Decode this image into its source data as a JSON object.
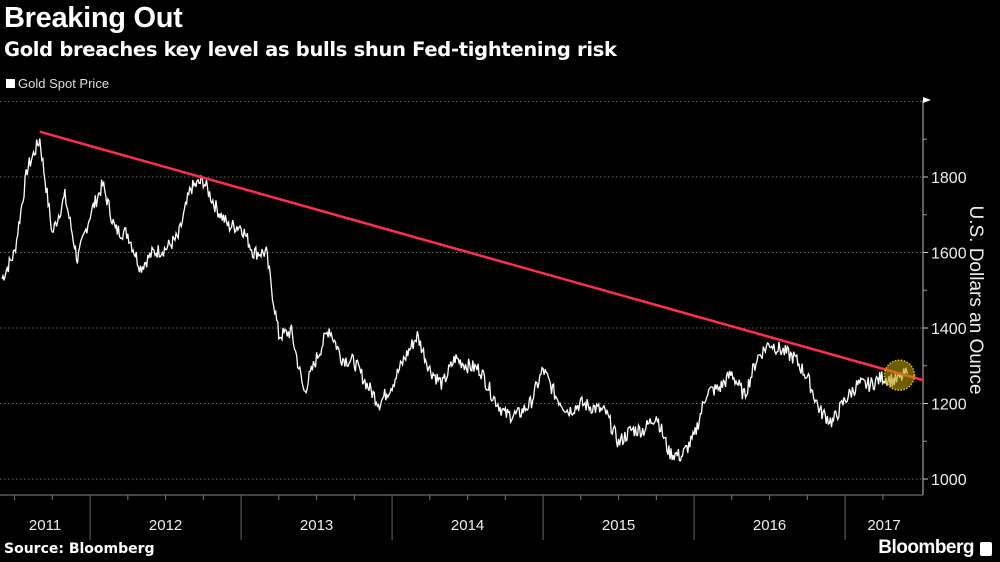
{
  "title": "Breaking Out",
  "subtitle": "Gold breaches key level as bulls shun Fed-tightening risk",
  "source": "Source: Bloomberg",
  "brand": "Bloomberg",
  "chart_data": {
    "type": "line",
    "legend": [
      "Gold Spot Price"
    ],
    "ylabel": "U.S. Dollars an Ounce",
    "ylim": [
      1000,
      2000
    ],
    "yticks": [
      1000,
      1200,
      1400,
      1600,
      1800
    ],
    "xlim": [
      "2011-06",
      "2017-06"
    ],
    "xtick_labels": [
      "2011",
      "2012",
      "2013",
      "2014",
      "2015",
      "2016",
      "2017"
    ],
    "grid": true,
    "colors": {
      "series": "#ffffff",
      "trendline": "#ff2d4f",
      "highlight": "#b89a00"
    },
    "series": [
      {
        "name": "Gold Spot Price",
        "x": [
          "2011-06",
          "2011-07",
          "2011-08",
          "2011-09",
          "2011-10",
          "2011-11",
          "2011-12",
          "2012-01",
          "2012-02",
          "2012-03",
          "2012-04",
          "2012-05",
          "2012-06",
          "2012-07",
          "2012-08",
          "2012-09",
          "2012-10",
          "2012-11",
          "2012-12",
          "2013-01",
          "2013-02",
          "2013-03",
          "2013-04",
          "2013-05",
          "2013-06",
          "2013-07",
          "2013-08",
          "2013-09",
          "2013-10",
          "2013-11",
          "2013-12",
          "2014-01",
          "2014-02",
          "2014-03",
          "2014-04",
          "2014-05",
          "2014-06",
          "2014-07",
          "2014-08",
          "2014-09",
          "2014-10",
          "2014-11",
          "2014-12",
          "2015-01",
          "2015-02",
          "2015-03",
          "2015-04",
          "2015-05",
          "2015-06",
          "2015-07",
          "2015-08",
          "2015-09",
          "2015-10",
          "2015-11",
          "2015-12",
          "2016-01",
          "2016-02",
          "2016-03",
          "2016-04",
          "2016-05",
          "2016-06",
          "2016-07",
          "2016-08",
          "2016-09",
          "2016-10",
          "2016-11",
          "2016-12",
          "2017-01",
          "2017-02",
          "2017-03",
          "2017-04",
          "2017-05",
          "2017-06"
        ],
        "y": [
          1530,
          1600,
          1820,
          1900,
          1650,
          1750,
          1580,
          1700,
          1780,
          1660,
          1650,
          1560,
          1600,
          1610,
          1640,
          1770,
          1790,
          1720,
          1670,
          1670,
          1600,
          1600,
          1380,
          1390,
          1230,
          1320,
          1400,
          1320,
          1310,
          1250,
          1200,
          1250,
          1320,
          1380,
          1290,
          1250,
          1320,
          1300,
          1290,
          1220,
          1170,
          1170,
          1200,
          1290,
          1220,
          1180,
          1200,
          1190,
          1175,
          1095,
          1130,
          1130,
          1170,
          1070,
          1060,
          1110,
          1230,
          1240,
          1280,
          1220,
          1320,
          1360,
          1340,
          1320,
          1270,
          1180,
          1150,
          1210,
          1250,
          1250,
          1270,
          1260,
          1280
        ]
      }
    ],
    "trendline": {
      "from": [
        "2011-09",
        1920
      ],
      "to": [
        "2017-06",
        1262
      ]
    },
    "highlight": {
      "x": "2017-05",
      "y": 1275
    }
  }
}
